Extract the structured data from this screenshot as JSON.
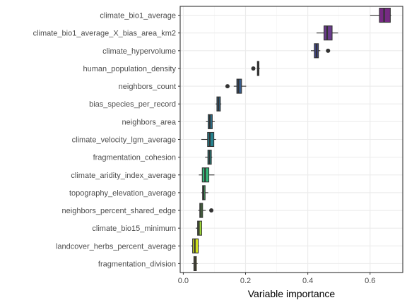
{
  "chart_data": {
    "type": "boxplot",
    "xlabel": "Variable importance",
    "ylabel": "",
    "xlim": [
      -0.01,
      0.705
    ],
    "x_ticks": [
      "0.0",
      "0.2",
      "0.4",
      "0.6"
    ],
    "x_tick_values": [
      0.0,
      0.2,
      0.4,
      0.6
    ],
    "grid": true,
    "legend": "none",
    "colors": {
      "panel_border": "#333333",
      "grid_major": "#ebebeb",
      "grid_minor": "#f5f5f5",
      "box_stroke": "#333333"
    },
    "variables": [
      {
        "name": "climate_bio1_average",
        "whisker_low": 0.6,
        "q1": 0.63,
        "median": 0.645,
        "q3": 0.665,
        "whisker_high": 0.668,
        "outliers": [],
        "fill": "#762a83"
      },
      {
        "name": "climate_bio1_average_X_bias_area_km2",
        "whisker_low": 0.428,
        "q1": 0.452,
        "median": 0.462,
        "q3": 0.478,
        "whisker_high": 0.497,
        "outliers": [],
        "fill": "#6a3b8c"
      },
      {
        "name": "climate_hypervolume",
        "whisker_low": 0.41,
        "q1": 0.421,
        "median": 0.428,
        "q3": 0.434,
        "whisker_high": 0.44,
        "outliers": [
          0.465
        ],
        "fill": "#404688"
      },
      {
        "name": "human_population_density",
        "whisker_low": 0.236,
        "q1": 0.238,
        "median": 0.24,
        "q3": 0.243,
        "whisker_high": 0.246,
        "outliers": [
          0.225
        ],
        "fill": "#3b528b"
      },
      {
        "name": "neighbors_count",
        "whisker_low": 0.162,
        "q1": 0.172,
        "median": 0.177,
        "q3": 0.187,
        "whisker_high": 0.202,
        "outliers": [
          0.142
        ],
        "fill": "#365c8d"
      },
      {
        "name": "bias_species_per_record",
        "whisker_low": 0.104,
        "q1": 0.108,
        "median": 0.113,
        "q3": 0.119,
        "whisker_high": 0.122,
        "outliers": [],
        "fill": "#31688e"
      },
      {
        "name": "neighbors_area",
        "whisker_low": 0.073,
        "q1": 0.08,
        "median": 0.085,
        "q3": 0.093,
        "whisker_high": 0.101,
        "outliers": [],
        "fill": "#2c728e"
      },
      {
        "name": "climate_velocity_lgm_average",
        "whisker_low": 0.058,
        "q1": 0.078,
        "median": 0.085,
        "q3": 0.098,
        "whisker_high": 0.105,
        "outliers": [],
        "fill": "#26828e"
      },
      {
        "name": "fragmentation_cohesion",
        "whisker_low": 0.07,
        "q1": 0.079,
        "median": 0.084,
        "q3": 0.09,
        "whisker_high": 0.093,
        "outliers": [],
        "fill": "#21918c"
      },
      {
        "name": "climate_aridity_index_average",
        "whisker_low": 0.05,
        "q1": 0.061,
        "median": 0.07,
        "q3": 0.082,
        "whisker_high": 0.1,
        "outliers": [],
        "fill": "#35b779"
      },
      {
        "name": "topography_elevation_average",
        "whisker_low": 0.058,
        "q1": 0.062,
        "median": 0.065,
        "q3": 0.07,
        "whisker_high": 0.08,
        "outliers": [],
        "fill": "#4ac16d"
      },
      {
        "name": "neighbors_percent_shared_edge",
        "whisker_low": 0.048,
        "q1": 0.053,
        "median": 0.057,
        "q3": 0.062,
        "whisker_high": 0.072,
        "outliers": [
          0.09
        ],
        "fill": "#6ece58"
      },
      {
        "name": "climate_bio15_minimum",
        "whisker_low": 0.04,
        "q1": 0.046,
        "median": 0.05,
        "q3": 0.059,
        "whisker_high": 0.06,
        "outliers": [],
        "fill": "#a0da39"
      },
      {
        "name": "landcover_herbs_percent_average",
        "whisker_low": 0.025,
        "q1": 0.03,
        "median": 0.037,
        "q3": 0.048,
        "whisker_high": 0.05,
        "outliers": [],
        "fill": "#d0e11c"
      },
      {
        "name": "fragmentation_division",
        "whisker_low": 0.028,
        "q1": 0.034,
        "median": 0.038,
        "q3": 0.042,
        "whisker_high": 0.046,
        "outliers": [],
        "fill": "#fde725"
      }
    ]
  }
}
